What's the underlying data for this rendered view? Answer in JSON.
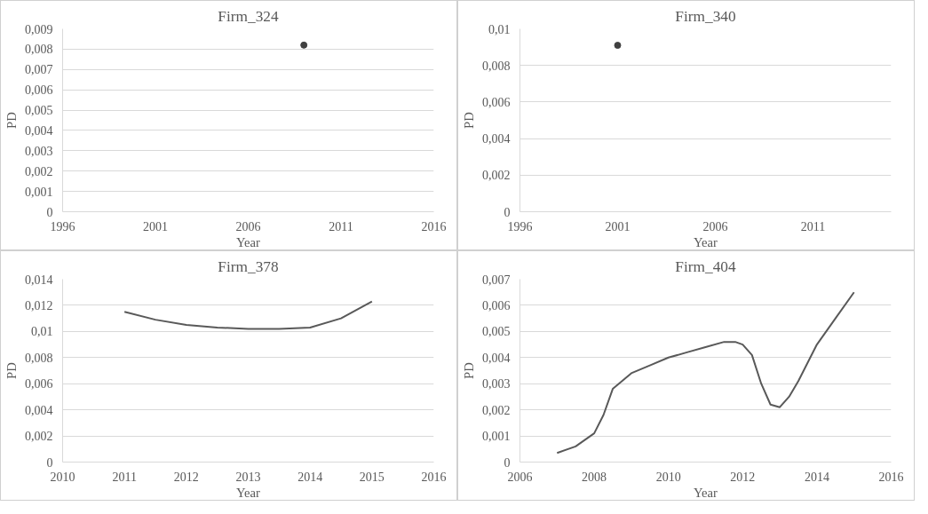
{
  "chart_data": [
    {
      "type": "scatter",
      "title": "Firm_324",
      "xlabel": "Year",
      "ylabel": "PD",
      "x": [
        2009
      ],
      "values": [
        0.0082
      ],
      "color": "#404040",
      "marker": "circle",
      "grid": "y",
      "xlim": [
        1996,
        2016
      ],
      "xticks": [
        1996,
        2001,
        2006,
        2011,
        2016
      ],
      "ylim": [
        0,
        0.009
      ],
      "yticks": [
        0,
        {
          "value": 0.001,
          "label": "0,001"
        },
        {
          "value": 0.002,
          "label": "0,002"
        },
        {
          "value": 0.003,
          "label": "0,003"
        },
        {
          "value": 0.004,
          "label": "0,004"
        },
        {
          "value": 0.005,
          "label": "0,005"
        },
        {
          "value": 0.006,
          "label": "0,006"
        },
        {
          "value": 0.007,
          "label": "0,007"
        },
        {
          "value": 0.008,
          "label": "0,008"
        },
        {
          "value": 0.009,
          "label": "0,009"
        }
      ]
    },
    {
      "type": "scatter",
      "title": "Firm_340",
      "xlabel": "Year",
      "ylabel": "PD",
      "x": [
        2001
      ],
      "values": [
        0.0091
      ],
      "color": "#404040",
      "marker": "circle",
      "grid": "y",
      "xlim": [
        1996,
        2015
      ],
      "xticks": [
        1996,
        2001,
        2006,
        2011
      ],
      "ylim": [
        0,
        0.01
      ],
      "yticks": [
        0,
        {
          "value": 0.002,
          "label": "0,002"
        },
        {
          "value": 0.004,
          "label": "0,004"
        },
        {
          "value": 0.006,
          "label": "0,006"
        },
        {
          "value": 0.008,
          "label": "0,008"
        },
        {
          "value": 0.01,
          "label": "0,01"
        }
      ]
    },
    {
      "type": "line",
      "title": "Firm_378",
      "xlabel": "Year",
      "ylabel": "PD",
      "x": [
        2011,
        2011.5,
        2012,
        2012.5,
        2013,
        2013.5,
        2014,
        2014.5,
        2015
      ],
      "values": [
        0.0115,
        0.0109,
        0.0105,
        0.0103,
        0.0102,
        0.0102,
        0.0103,
        0.011,
        0.0123
      ],
      "color": "#595959",
      "grid": "y",
      "line_style": "solid",
      "xlim": [
        2010,
        2016
      ],
      "xticks": [
        2010,
        2011,
        2012,
        2013,
        2014,
        2015,
        2016
      ],
      "ylim": [
        0,
        0.014
      ],
      "yticks": [
        0,
        {
          "value": 0.002,
          "label": "0,002"
        },
        {
          "value": 0.004,
          "label": "0,004"
        },
        {
          "value": 0.006,
          "label": "0,006"
        },
        {
          "value": 0.008,
          "label": "0,008"
        },
        {
          "value": 0.01,
          "label": "0,01"
        },
        {
          "value": 0.012,
          "label": "0,012"
        },
        {
          "value": 0.014,
          "label": "0,014"
        }
      ]
    },
    {
      "type": "line",
      "title": "Firm_404",
      "xlabel": "Year",
      "ylabel": "PD",
      "x": [
        2007,
        2007.5,
        2008,
        2008.25,
        2008.5,
        2009,
        2009.5,
        2010,
        2010.5,
        2011,
        2011.5,
        2011.8,
        2012,
        2012.25,
        2012.5,
        2012.75,
        2013,
        2013.25,
        2013.5,
        2014,
        2014.5,
        2015
      ],
      "values": [
        0.00035,
        0.0006,
        0.0011,
        0.0018,
        0.0028,
        0.0034,
        0.0037,
        0.004,
        0.0042,
        0.0044,
        0.0046,
        0.0046,
        0.0045,
        0.0041,
        0.003,
        0.0022,
        0.0021,
        0.0025,
        0.0031,
        0.0045,
        0.0055,
        0.0065
      ],
      "color": "#595959",
      "grid": "y",
      "line_style": "solid",
      "xlim": [
        2006,
        2016
      ],
      "xticks": [
        2006,
        2008,
        2010,
        2012,
        2014,
        2016
      ],
      "ylim": [
        0,
        0.007
      ],
      "yticks": [
        0,
        {
          "value": 0.001,
          "label": "0,001"
        },
        {
          "value": 0.002,
          "label": "0,002"
        },
        {
          "value": 0.003,
          "label": "0,003"
        },
        {
          "value": 0.004,
          "label": "0,004"
        },
        {
          "value": 0.005,
          "label": "0,005"
        },
        {
          "value": 0.006,
          "label": "0,006"
        },
        {
          "value": 0.007,
          "label": "0,007"
        }
      ]
    }
  ]
}
